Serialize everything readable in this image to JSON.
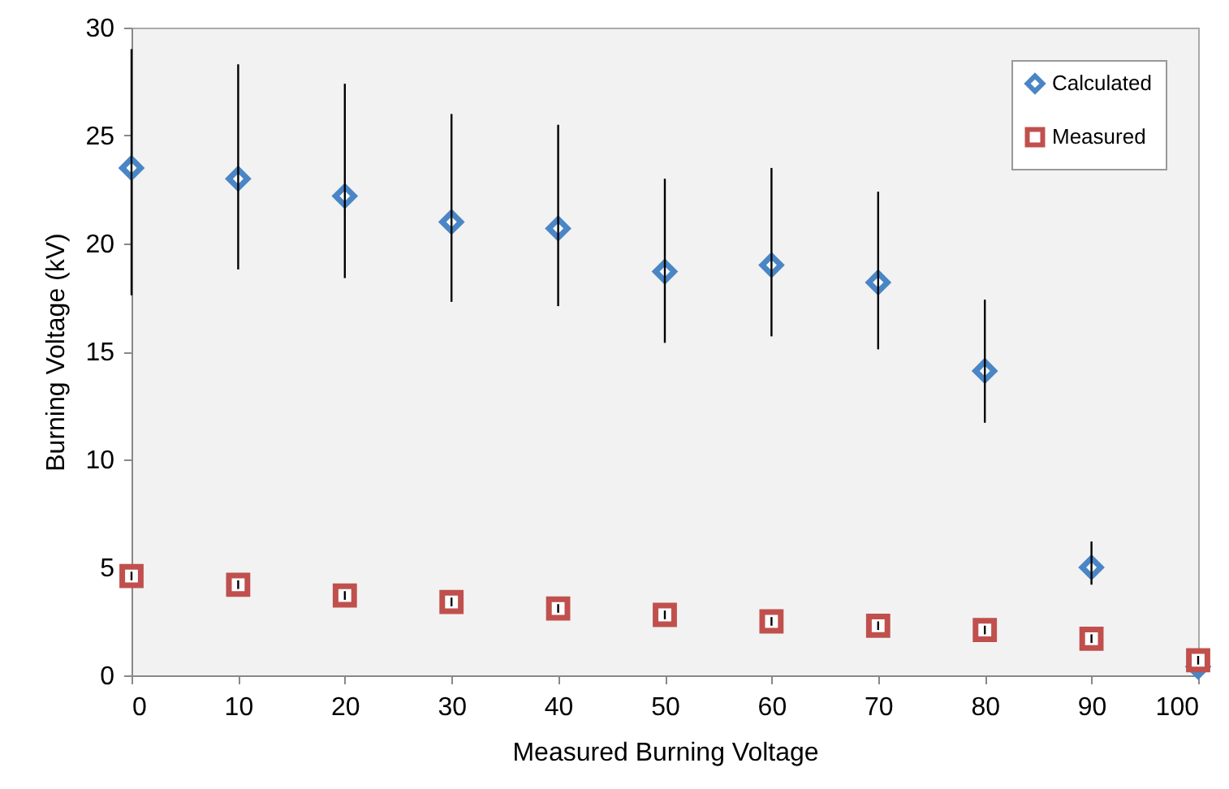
{
  "chart_data": {
    "type": "scatter",
    "xlabel": "Measured Burning Voltage",
    "ylabel": "Burning Voltage (kV)",
    "x": [
      0,
      10,
      20,
      30,
      40,
      50,
      60,
      70,
      80,
      90,
      100
    ],
    "series": [
      {
        "name": "Calculated",
        "color": "#4a86c5",
        "marker": "diamond",
        "values": [
          23.5,
          23.0,
          22.2,
          21.0,
          20.7,
          18.7,
          19.0,
          18.2,
          14.1,
          5.0,
          0.4
        ],
        "errors": [
          [
            17.6,
            29.0
          ],
          [
            18.8,
            28.3
          ],
          [
            18.4,
            27.4
          ],
          [
            17.3,
            26.0
          ],
          [
            17.1,
            25.5
          ],
          [
            15.4,
            23.0
          ],
          [
            15.7,
            23.5
          ],
          [
            15.1,
            22.4
          ],
          [
            11.7,
            17.4
          ],
          [
            4.2,
            6.2
          ],
          null
        ]
      },
      {
        "name": "Measured",
        "color": "#c0504d",
        "marker": "square",
        "values": [
          4.6,
          4.2,
          3.7,
          3.4,
          3.1,
          2.8,
          2.5,
          2.3,
          2.1,
          1.7,
          0.7
        ],
        "errors": [
          0.2,
          0.2,
          0.2,
          0.2,
          0.2,
          0.2,
          0.2,
          0.2,
          0.2,
          0.2,
          0.2
        ]
      }
    ],
    "xlim": [
      0,
      100
    ],
    "xticks": [
      0,
      10,
      20,
      30,
      40,
      50,
      60,
      70,
      80,
      90,
      100
    ],
    "ylim": [
      0,
      30
    ],
    "yticks": [
      0,
      5,
      10,
      15,
      20,
      25,
      30
    ],
    "grid": false,
    "legend": "top right"
  }
}
